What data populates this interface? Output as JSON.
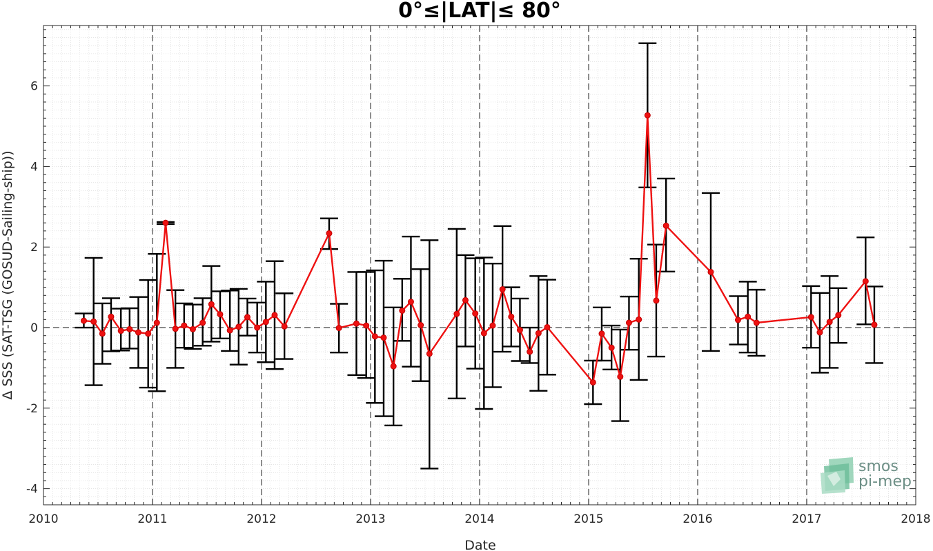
{
  "chart_data": {
    "type": "line",
    "title": "0°≤|LAT|≤ 80°",
    "xlabel": "Date",
    "ylabel": "Δ SSS (SAT-TSG (GOSUD-Sailing-ship))",
    "xlim": [
      2010,
      2018
    ],
    "ylim": [
      -4.4,
      7.5
    ],
    "x_ticks": [
      2010,
      2011,
      2012,
      2013,
      2014,
      2015,
      2016,
      2017,
      2018
    ],
    "y_ticks": [
      -4,
      -2,
      0,
      2,
      4,
      6
    ],
    "year_markers": [
      2011,
      2012,
      2013,
      2014,
      2015,
      2016,
      2017
    ],
    "reference_line_y": 0,
    "grid": "minor dotted",
    "colors": {
      "line": "#ee1111",
      "error_bars": "#000000",
      "reference": "#555555"
    },
    "series": [
      {
        "x": [
          2010.37,
          2010.46,
          2010.54,
          2010.62,
          2010.71,
          2010.79,
          2010.87,
          2010.96,
          2011.04,
          2011.12,
          2011.21,
          2011.29,
          2011.37,
          2011.46,
          2011.54,
          2011.62,
          2011.71,
          2011.79,
          2011.87,
          2011.96,
          2012.04,
          2012.12,
          2012.21,
          2012.62,
          2012.71,
          2012.87,
          2012.96,
          2013.04,
          2013.12,
          2013.21,
          2013.29,
          2013.37,
          2013.46,
          2013.54,
          2013.79,
          2013.87,
          2013.96,
          2014.04,
          2014.12,
          2014.21,
          2014.29,
          2014.37,
          2014.46,
          2014.54,
          2014.62,
          2015.04,
          2015.12,
          2015.21,
          2015.29,
          2015.37,
          2015.46,
          2015.54,
          2015.62,
          2015.71,
          2016.12,
          2016.37,
          2016.46,
          2016.54,
          2017.04,
          2017.12,
          2017.21,
          2017.29,
          2017.54,
          2017.62
        ],
        "y": [
          0.17,
          0.15,
          -0.15,
          0.27,
          -0.08,
          -0.04,
          -0.12,
          -0.15,
          0.12,
          2.6,
          -0.03,
          0.05,
          -0.04,
          0.12,
          0.58,
          0.33,
          -0.07,
          0.02,
          0.26,
          0.0,
          0.14,
          0.31,
          0.03,
          2.34,
          -0.01,
          0.1,
          0.05,
          -0.22,
          -0.25,
          -0.96,
          0.42,
          0.64,
          0.06,
          -0.65,
          0.34,
          0.68,
          0.35,
          -0.14,
          0.05,
          0.95,
          0.27,
          -0.06,
          -0.6,
          -0.14,
          0.01,
          -1.36,
          -0.15,
          -0.5,
          -1.22,
          0.12,
          0.2,
          5.27,
          0.67,
          2.53,
          1.38,
          0.19,
          0.27,
          0.12,
          0.26,
          -0.12,
          0.14,
          0.31,
          1.15,
          0.07
        ],
        "err_low": [
          0.0,
          -1.43,
          -0.9,
          -0.59,
          -0.57,
          -0.52,
          -1.0,
          -1.49,
          -1.58,
          2.57,
          -1.0,
          -0.5,
          -0.53,
          -0.45,
          -0.35,
          -0.27,
          -0.58,
          -0.92,
          -0.2,
          -0.62,
          -0.86,
          -1.03,
          -0.78,
          1.95,
          -0.62,
          -1.18,
          -1.25,
          -1.87,
          -2.2,
          -2.43,
          -0.33,
          -0.97,
          -1.33,
          -3.5,
          -1.76,
          -0.47,
          -1.02,
          -2.02,
          -1.48,
          -0.6,
          -0.47,
          -0.83,
          -0.88,
          -1.57,
          -1.17,
          -1.9,
          -0.82,
          -1.04,
          -2.32,
          -0.55,
          -1.3,
          3.48,
          -0.72,
          1.39,
          -0.58,
          -0.42,
          -0.62,
          -0.7,
          -0.5,
          -1.12,
          -1.0,
          -0.38,
          0.08,
          -0.88
        ],
        "err_high": [
          0.35,
          1.73,
          0.6,
          0.73,
          0.47,
          0.48,
          0.76,
          1.18,
          1.83,
          2.62,
          0.93,
          0.6,
          0.57,
          0.73,
          1.53,
          0.9,
          0.92,
          0.96,
          0.72,
          0.62,
          1.14,
          1.65,
          0.85,
          2.71,
          0.59,
          1.38,
          1.38,
          1.42,
          1.66,
          0.5,
          1.21,
          2.26,
          1.45,
          2.17,
          2.45,
          1.8,
          1.72,
          1.74,
          1.59,
          2.52,
          1.0,
          0.72,
          0.0,
          1.28,
          1.19,
          -0.82,
          0.5,
          0.05,
          -0.05,
          0.77,
          1.71,
          7.06,
          2.06,
          3.7,
          3.34,
          0.78,
          1.14,
          0.94,
          1.03,
          0.86,
          1.28,
          0.98,
          2.24,
          1.02
        ]
      }
    ]
  },
  "logo": {
    "line1": "smos",
    "line2": "pi-mep"
  }
}
